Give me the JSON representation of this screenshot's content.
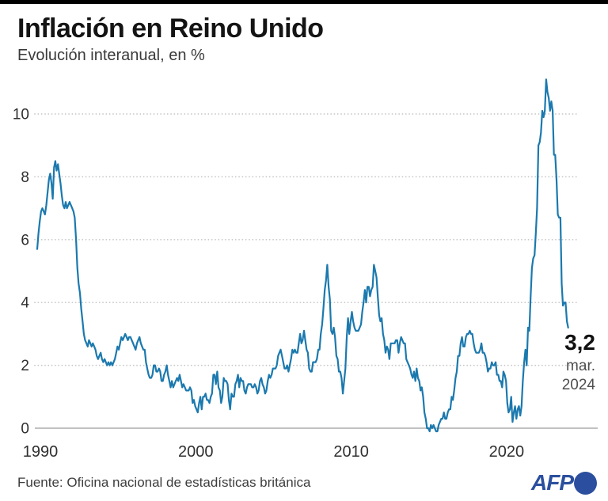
{
  "header": {
    "title": "Inflación en Reino Unido",
    "subtitle": "Evolución interanual, en %"
  },
  "annotation": {
    "value": "3,2",
    "month": "mar.",
    "year": "2024"
  },
  "footer": {
    "source": "Fuente: Oficina nacional de estadísticas británica",
    "logo_text": "AFP"
  },
  "colors": {
    "line": "#1b79ae",
    "afp_blue": "#2b4f9e",
    "accent_bar": "#000000"
  },
  "chart_data": {
    "type": "line",
    "title": "Inflación en Reino Unido",
    "subtitle": "Evolución interanual, en %",
    "unit": "%",
    "x_axis": {
      "start_year": 1990,
      "end": "2024-03",
      "frequency": "monthly",
      "ticks": [
        1990,
        2000,
        2010,
        2020
      ]
    },
    "y_axis": {
      "ticks": [
        0,
        2,
        4,
        6,
        8,
        10
      ],
      "ylim": [
        -0.3,
        11.5
      ],
      "gridlines": "dotted"
    },
    "last_point": {
      "label": "3,2",
      "date": "mar. 2024",
      "value": 3.2
    },
    "values": [
      5.7,
      6.2,
      6.6,
      6.9,
      7.0,
      6.9,
      6.8,
      7.1,
      7.5,
      7.9,
      8.1,
      7.8,
      7.3,
      8.3,
      8.5,
      8.2,
      8.4,
      8.1,
      7.8,
      7.4,
      7.1,
      7.0,
      7.2,
      7.0,
      7.1,
      7.2,
      7.1,
      7.0,
      6.9,
      6.7,
      6.0,
      5.1,
      4.6,
      4.3,
      3.8,
      3.4,
      3.0,
      2.8,
      2.7,
      2.6,
      2.8,
      2.7,
      2.6,
      2.7,
      2.6,
      2.5,
      2.3,
      2.2,
      2.3,
      2.4,
      2.2,
      2.1,
      2.2,
      2.1,
      2.0,
      2.1,
      2.0,
      2.1,
      2.0,
      2.1,
      2.2,
      2.4,
      2.6,
      2.5,
      2.7,
      2.9,
      2.8,
      2.9,
      3.0,
      2.9,
      2.8,
      2.9,
      2.9,
      2.8,
      2.7,
      2.6,
      2.5,
      2.7,
      2.8,
      2.9,
      2.7,
      2.6,
      2.5,
      2.5,
      2.1,
      1.9,
      1.7,
      1.6,
      1.6,
      1.7,
      2.0,
      2.0,
      1.8,
      1.8,
      1.9,
      1.8,
      1.5,
      1.5,
      1.7,
      1.8,
      2.0,
      1.7,
      1.5,
      1.3,
      1.5,
      1.3,
      1.4,
      1.5,
      1.6,
      1.5,
      1.7,
      1.5,
      1.3,
      1.4,
      1.3,
      1.2,
      1.2,
      1.2,
      1.3,
      1.2,
      0.8,
      0.9,
      0.7,
      0.6,
      0.5,
      0.8,
      1.0,
      0.6,
      1.0,
      1.0,
      1.1,
      0.9,
      0.9,
      0.8,
      1.0,
      1.1,
      1.7,
      1.7,
      1.4,
      1.8,
      1.3,
      1.2,
      0.8,
      1.0,
      1.6,
      1.5,
      1.5,
      1.4,
      0.9,
      0.6,
      1.1,
      1.0,
      1.0,
      1.4,
      1.5,
      1.7,
      1.3,
      1.6,
      1.5,
      1.5,
      1.2,
      1.1,
      1.3,
      1.4,
      1.4,
      1.4,
      1.3,
      1.3,
      1.4,
      1.3,
      1.1,
      1.2,
      1.5,
      1.6,
      1.4,
      1.3,
      1.1,
      1.2,
      1.5,
      1.7,
      1.6,
      1.7,
      1.9,
      1.9,
      1.9,
      2.0,
      2.3,
      2.4,
      2.5,
      2.3,
      2.1,
      1.9,
      1.9,
      2.0,
      1.8,
      2.0,
      2.2,
      2.5,
      2.4,
      2.5,
      2.4,
      2.4,
      2.7,
      3.0,
      2.7,
      2.8,
      3.1,
      2.8,
      2.5,
      2.4,
      1.9,
      1.8,
      1.8,
      2.1,
      2.1,
      2.1,
      2.2,
      2.5,
      2.5,
      3.0,
      3.3,
      3.8,
      4.4,
      4.7,
      5.2,
      4.5,
      4.1,
      3.1,
      3.0,
      3.2,
      2.9,
      2.3,
      2.2,
      1.8,
      1.8,
      1.6,
      1.1,
      1.5,
      1.9,
      2.9,
      3.5,
      3.0,
      3.4,
      3.7,
      3.4,
      3.2,
      3.1,
      3.1,
      3.1,
      3.2,
      3.3,
      3.7,
      4.0,
      4.4,
      4.0,
      4.5,
      4.5,
      4.2,
      4.4,
      4.5,
      5.2,
      5.0,
      4.8,
      4.2,
      3.6,
      3.4,
      3.5,
      3.0,
      2.8,
      2.4,
      2.6,
      2.5,
      2.2,
      2.7,
      2.7,
      2.7,
      2.7,
      2.8,
      2.8,
      2.4,
      2.7,
      2.9,
      2.8,
      2.7,
      2.7,
      2.2,
      2.1,
      2.0,
      1.9,
      1.7,
      1.6,
      1.8,
      1.5,
      1.9,
      1.6,
      1.5,
      1.2,
      1.3,
      1.0,
      0.5,
      0.3,
      0.0,
      0.0,
      -0.1,
      0.1,
      0.0,
      0.1,
      0.0,
      -0.1,
      -0.1,
      0.1,
      0.2,
      0.3,
      0.3,
      0.5,
      0.3,
      0.3,
      0.5,
      0.6,
      0.6,
      1.0,
      0.9,
      1.2,
      1.6,
      1.8,
      2.3,
      2.3,
      2.7,
      2.9,
      2.6,
      2.6,
      2.9,
      3.0,
      3.0,
      3.1,
      3.0,
      3.0,
      2.7,
      2.5,
      2.4,
      2.4,
      2.4,
      2.5,
      2.7,
      2.4,
      2.4,
      2.3,
      2.1,
      1.8,
      1.9,
      1.9,
      2.1,
      2.0,
      2.0,
      2.1,
      1.7,
      1.7,
      1.5,
      1.5,
      1.3,
      1.8,
      1.7,
      1.5,
      0.8,
      0.5,
      0.6,
      1.0,
      0.2,
      0.5,
      0.7,
      0.3,
      0.6,
      0.7,
      0.4,
      0.7,
      1.5,
      2.1,
      2.5,
      2.0,
      3.2,
      3.1,
      4.2,
      5.1,
      5.4,
      5.5,
      6.2,
      7.0,
      9.0,
      9.1,
      9.4,
      10.1,
      9.9,
      10.1,
      11.1,
      10.7,
      10.5,
      10.1,
      10.4,
      10.1,
      8.7,
      8.7,
      7.9,
      6.8,
      6.7,
      6.7,
      4.6,
      3.9,
      4.0,
      4.0,
      3.4,
      3.2
    ]
  }
}
